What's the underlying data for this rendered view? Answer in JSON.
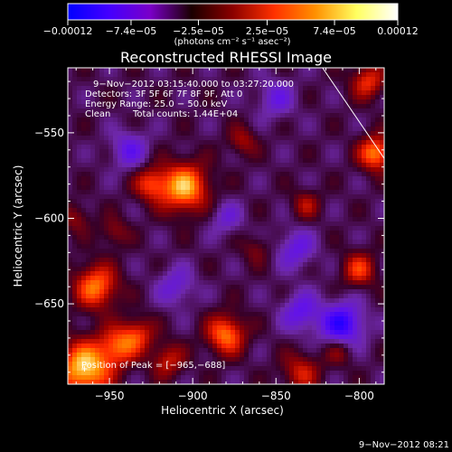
{
  "chart_data": {
    "type": "heatmap",
    "title": "Reconstructed RHESSI Image",
    "xlabel": "Heliocentric X (arcsec)",
    "ylabel": "Heliocentric Y (arcsec)",
    "xlim": [
      -975,
      -785
    ],
    "ylim": [
      -697,
      -512
    ],
    "xticks": [
      -950,
      -900,
      -850,
      -800
    ],
    "xtick_labels": [
      "−950",
      "−900",
      "−850",
      "−800"
    ],
    "yticks": [
      -550,
      -600,
      -650
    ],
    "ytick_labels": [
      "−550",
      "−600",
      "−650"
    ],
    "colorbar": {
      "min": -0.00012,
      "max": 0.00012,
      "ticks": [
        -0.00012,
        -7.4e-05,
        -2.5e-05,
        2.5e-05,
        7.4e-05,
        0.00012
      ],
      "tick_labels": [
        "−0.00012",
        "−7.4e−05",
        "−2.5e−05",
        "2.5e−05",
        "7.4e−05",
        "0.00012"
      ],
      "units": "(photons cm⁻² s⁻¹ asec⁻²)",
      "colors": [
        "#0000ff",
        "#4400ff",
        "#7a00c8",
        "#1a0000",
        "#8b0000",
        "#ff3000",
        "#ff9000",
        "#ffff60",
        "#ffffff"
      ]
    },
    "annotations": {
      "time_range": "9−Nov−2012 03:15:40.000 to 03:27:20.000",
      "detectors": "Detectors: 3F 5F 6F 7F 8F 9F, Att 0",
      "energy_range": "Energy Range: 25.0 − 50.0 keV",
      "method": "Clean",
      "total_counts": "Total counts: 1.44E+04",
      "peak": "Position of Peak = [−965,−688]"
    },
    "peak": {
      "x": -965,
      "y": -688
    },
    "sources": [
      {
        "x": -965,
        "y": -688,
        "intensity": 1.0,
        "sigma": 11
      },
      {
        "x": -945,
        "y": -675,
        "intensity": 0.6,
        "sigma": 8
      },
      {
        "x": -958,
        "y": -640,
        "intensity": 0.75,
        "sigma": 9
      },
      {
        "x": -947,
        "y": -608,
        "intensity": 0.3,
        "sigma": 6
      },
      {
        "x": -905,
        "y": -582,
        "intensity": 0.9,
        "sigma": 10
      },
      {
        "x": -925,
        "y": -580,
        "intensity": 0.55,
        "sigma": 7
      },
      {
        "x": -880,
        "y": -668,
        "intensity": 0.75,
        "sigma": 8
      },
      {
        "x": -933,
        "y": -668,
        "intensity": 0.5,
        "sigma": 7
      },
      {
        "x": -915,
        "y": -683,
        "intensity": 0.45,
        "sigma": 7
      },
      {
        "x": -790,
        "y": -562,
        "intensity": 0.8,
        "sigma": 7
      },
      {
        "x": -795,
        "y": -520,
        "intensity": 0.55,
        "sigma": 7
      },
      {
        "x": -800,
        "y": -630,
        "intensity": 0.55,
        "sigma": 7
      },
      {
        "x": -870,
        "y": -555,
        "intensity": 0.35,
        "sigma": 6
      },
      {
        "x": -832,
        "y": -592,
        "intensity": 0.35,
        "sigma": 6
      },
      {
        "x": -835,
        "y": -690,
        "intensity": 0.45,
        "sigma": 8
      },
      {
        "x": -812,
        "y": -678,
        "intensity": 0.3,
        "sigma": 6
      },
      {
        "x": -970,
        "y": -600,
        "intensity": 0.3,
        "sigma": 6
      },
      {
        "x": -862,
        "y": -618,
        "intensity": 0.25,
        "sigma": 6
      },
      {
        "x": -810,
        "y": -662,
        "intensity": -0.7,
        "sigma": 9
      },
      {
        "x": -835,
        "y": -655,
        "intensity": -0.45,
        "sigma": 8
      },
      {
        "x": -938,
        "y": -560,
        "intensity": -0.4,
        "sigma": 8
      },
      {
        "x": -838,
        "y": -618,
        "intensity": -0.4,
        "sigma": 8
      },
      {
        "x": -910,
        "y": -640,
        "intensity": -0.35,
        "sigma": 8
      },
      {
        "x": -850,
        "y": -530,
        "intensity": -0.35,
        "sigma": 8
      },
      {
        "x": -880,
        "y": -600,
        "intensity": -0.3,
        "sigma": 7
      }
    ],
    "limb_line": {
      "x": [
        -822,
        -785
      ],
      "y": [
        -512,
        -565
      ]
    },
    "grid": false
  },
  "footer": {
    "timestamp": "9−Nov−2012 08:21"
  }
}
